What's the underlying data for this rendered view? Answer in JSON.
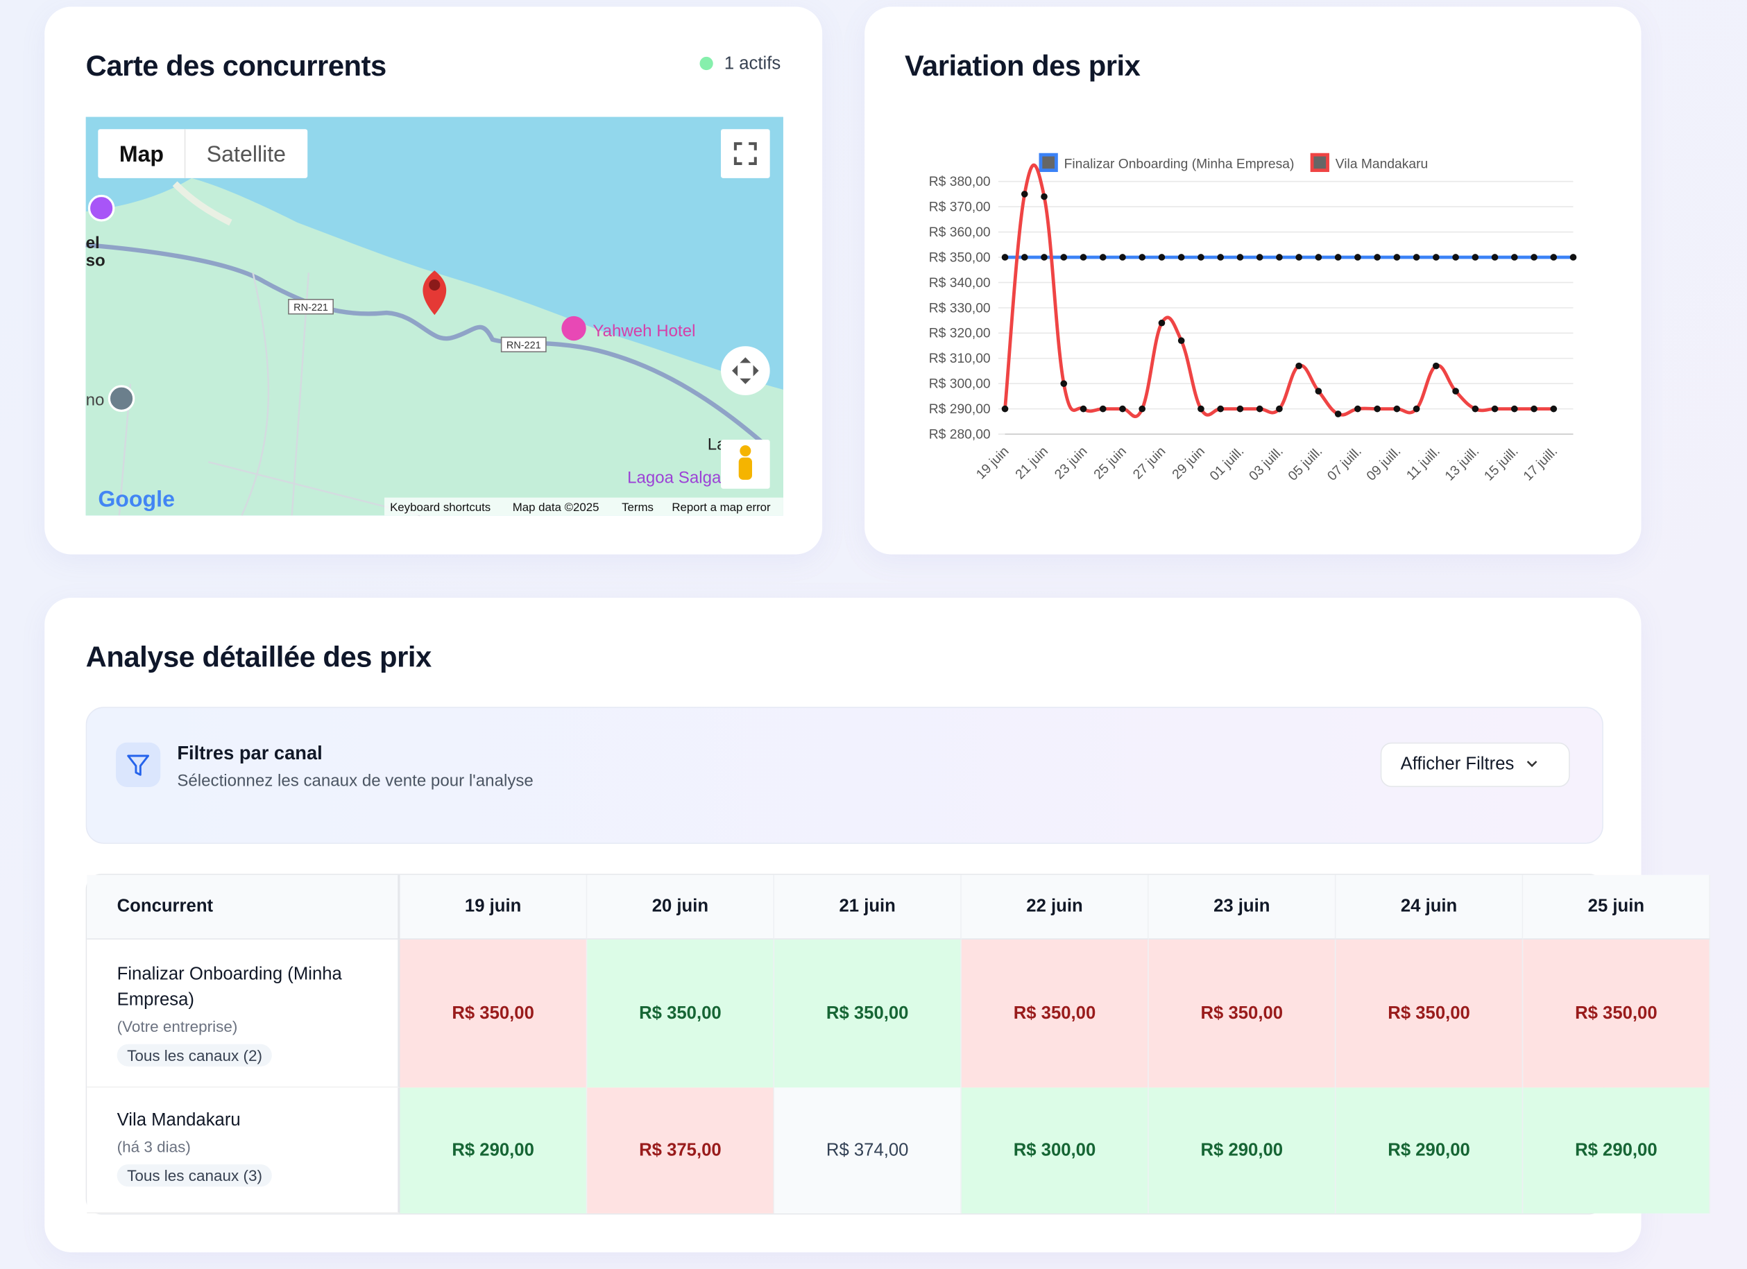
{
  "map_card": {
    "title": "Carte des concurrents",
    "status": "1 actifs",
    "map": {
      "tabs": [
        "Map",
        "Satellite"
      ],
      "road_labels": [
        "RN-221",
        "RN-221"
      ],
      "places": [
        "Yahweh Hotel",
        "Lagoa Salga"
      ],
      "edge_labels": [
        "el",
        "so",
        "no",
        "La"
      ],
      "logo": "Google",
      "footer": [
        "Keyboard shortcuts",
        "Map data ©2025",
        "Terms",
        "Report a map error"
      ]
    }
  },
  "chart_card": {
    "title": "Variation des prix"
  },
  "chart_data": {
    "type": "line",
    "categories": [
      "19 juin",
      null,
      "21 juin",
      null,
      "23 juin",
      null,
      "25 juin",
      null,
      "27 juin",
      null,
      "29 juin",
      null,
      "01 juill.",
      null,
      "03 juill.",
      null,
      "05 juill.",
      null,
      "07 juill.",
      null,
      "09 juill.",
      null,
      "11 juill.",
      null,
      "13 juill.",
      null,
      "15 juill.",
      null,
      "17 juill.",
      null
    ],
    "series": [
      {
        "name": "Finalizar Onboarding (Minha Empresa)",
        "color": "#3b82f6",
        "values": [
          350,
          350,
          350,
          350,
          350,
          350,
          350,
          350,
          350,
          350,
          350,
          350,
          350,
          350,
          350,
          350,
          350,
          350,
          350,
          350,
          350,
          350,
          350,
          350,
          350,
          350,
          350,
          350,
          350,
          350
        ]
      },
      {
        "name": "Vila Mandakaru",
        "color": "#ef4444",
        "values": [
          290,
          375,
          374,
          300,
          290,
          290,
          290,
          290,
          324,
          317,
          290,
          290,
          290,
          290,
          290,
          307,
          297,
          288,
          290,
          290,
          290,
          290,
          307,
          297,
          290,
          290,
          290,
          290,
          290,
          null
        ]
      }
    ],
    "ylim": [
      280,
      380
    ],
    "yticks": [
      {
        "value": 280,
        "label": "R$ 280,00"
      },
      {
        "value": 290,
        "label": "R$ 290,00"
      },
      {
        "value": 300,
        "label": "R$ 300,00"
      },
      {
        "value": 310,
        "label": "R$ 310,00"
      },
      {
        "value": 320,
        "label": "R$ 320,00"
      },
      {
        "value": 330,
        "label": "R$ 330,00"
      },
      {
        "value": 340,
        "label": "R$ 340,00"
      },
      {
        "value": 350,
        "label": "R$ 350,00"
      },
      {
        "value": 360,
        "label": "R$ 360,00"
      },
      {
        "value": 370,
        "label": "R$ 370,00"
      },
      {
        "value": 380,
        "label": "R$ 380,00"
      }
    ],
    "grid": true,
    "legend": "top"
  },
  "analysis": {
    "title": "Analyse détaillée des prix",
    "filter": {
      "title": "Filtres par canal",
      "subtitle": "Sélectionnez les canaux de vente pour l'analyse",
      "button": "Afficher Filtres"
    },
    "table": {
      "columns": [
        "Concurrent",
        "19 juin",
        "20 juin",
        "21 juin",
        "22 juin",
        "23 juin",
        "24 juin",
        "25 juin"
      ],
      "rows": [
        {
          "name": "Finalizar Onboarding (Minha Empresa)",
          "note": "(Votre entreprise)",
          "tag": "Tous les canaux (2)",
          "cells": [
            {
              "text": "R$ 350,00",
              "color": "#fee2e2"
            },
            {
              "text": "R$ 350,00",
              "color": "#dcfce7"
            },
            {
              "text": "R$ 350,00",
              "color": "#dcfce7"
            },
            {
              "text": "R$ 350,00",
              "color": "#fee2e2"
            },
            {
              "text": "R$ 350,00",
              "color": "#fee2e2"
            },
            {
              "text": "R$ 350,00",
              "color": "#fee2e2"
            },
            {
              "text": "R$ 350,00",
              "color": "#fee2e2"
            }
          ]
        },
        {
          "name": "Vila Mandakaru",
          "note": "(há 3 dias)",
          "tag": "Tous les canaux (3)",
          "cells": [
            {
              "text": "R$ 290,00",
              "color": "#dcfce7"
            },
            {
              "text": "R$ 375,00",
              "color": "#fee2e2"
            },
            {
              "text": "R$ 374,00",
              "color": "#f8fafc"
            },
            {
              "text": "R$ 300,00",
              "color": "#dcfce7"
            },
            {
              "text": "R$ 290,00",
              "color": "#dcfce7"
            },
            {
              "text": "R$ 290,00",
              "color": "#dcfce7"
            },
            {
              "text": "R$ 290,00",
              "color": "#dcfce7"
            }
          ]
        }
      ]
    }
  }
}
